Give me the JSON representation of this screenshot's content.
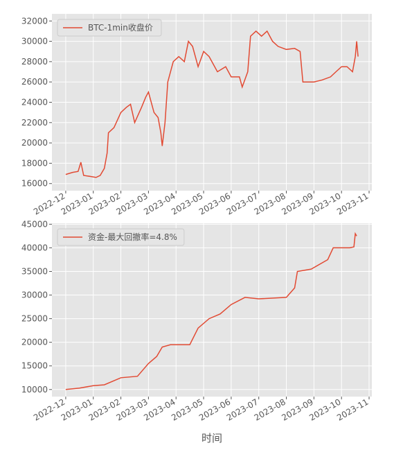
{
  "chart_data": [
    {
      "type": "line",
      "x": [
        0,
        0.25,
        0.45,
        0.55,
        0.65,
        0.9,
        1.1,
        1.25,
        1.4,
        1.5,
        1.55,
        1.75,
        2.0,
        2.2,
        2.35,
        2.5,
        2.75,
        2.9,
        3.0,
        3.2,
        3.35,
        3.45,
        3.5,
        3.6,
        3.7,
        3.9,
        4.1,
        4.3,
        4.45,
        4.6,
        4.8,
        5.0,
        5.2,
        5.5,
        5.8,
        6.0,
        6.3,
        6.4,
        6.6,
        6.7,
        6.9,
        7.1,
        7.3,
        7.5,
        7.7,
        8.0,
        8.3,
        8.5,
        8.6,
        8.8,
        9.0,
        9.3,
        9.6,
        9.8,
        10.0,
        10.2,
        10.4,
        10.5,
        10.55,
        10.6
      ],
      "series": [
        {
          "name": "BTC-1min收盘价",
          "color": "#e24a33",
          "values": [
            16900,
            17100,
            17200,
            18100,
            16800,
            16700,
            16600,
            16800,
            17500,
            19000,
            21000,
            21500,
            23000,
            23500,
            23800,
            22000,
            23500,
            24500,
            25000,
            23000,
            22500,
            21000,
            19700,
            22000,
            26000,
            28000,
            28500,
            28000,
            30000,
            29500,
            27500,
            29000,
            28500,
            27000,
            27500,
            26500,
            26500,
            25500,
            27000,
            30500,
            31000,
            30500,
            31000,
            30000,
            29500,
            29200,
            29300,
            29000,
            26000,
            26000,
            26000,
            26200,
            26500,
            27000,
            27500,
            27500,
            27000,
            28500,
            30000,
            28500
          ]
        }
      ],
      "xlim": [
        -0.5,
        11.1
      ],
      "xticks": [
        {
          "value": 0,
          "label": "2022-12"
        },
        {
          "value": 1,
          "label": "2023-01"
        },
        {
          "value": 2,
          "label": "2023-02"
        },
        {
          "value": 3,
          "label": "2023-03"
        },
        {
          "value": 4,
          "label": "2023-04"
        },
        {
          "value": 5,
          "label": "2023-05"
        },
        {
          "value": 6,
          "label": "2023-06"
        },
        {
          "value": 7,
          "label": "2023-07"
        },
        {
          "value": 8,
          "label": "2023-08"
        },
        {
          "value": 9,
          "label": "2023-09"
        },
        {
          "value": 10,
          "label": "2023-10"
        },
        {
          "value": 11,
          "label": "2023-11"
        }
      ],
      "ylim": [
        15300,
        32700
      ],
      "yticks": [
        16000,
        18000,
        20000,
        22000,
        24000,
        26000,
        28000,
        30000,
        32000
      ],
      "grid": true,
      "legend": "upper left"
    },
    {
      "type": "line",
      "x": [
        0,
        0.5,
        1.0,
        1.4,
        2.0,
        2.6,
        3.0,
        3.3,
        3.5,
        3.8,
        4.5,
        4.8,
        5.2,
        5.6,
        6.0,
        6.5,
        7.0,
        8.0,
        8.3,
        8.4,
        8.9,
        9.5,
        9.7,
        10.3,
        10.45,
        10.5,
        10.55
      ],
      "series": [
        {
          "name": "资金-最大回撤率=4.8%",
          "color": "#e24a33",
          "values": [
            10000,
            10300,
            10800,
            11000,
            12500,
            12800,
            15500,
            17000,
            19000,
            19500,
            19500,
            23000,
            25000,
            26000,
            28000,
            29500,
            29200,
            29500,
            31500,
            35000,
            35500,
            37500,
            40000,
            40000,
            40200,
            43000,
            42500
          ]
        }
      ],
      "xlim": [
        -0.5,
        11.1
      ],
      "xticks": [
        {
          "value": 0,
          "label": "2022-12"
        },
        {
          "value": 1,
          "label": "2023-01"
        },
        {
          "value": 2,
          "label": "2023-02"
        },
        {
          "value": 3,
          "label": "2023-03"
        },
        {
          "value": 4,
          "label": "2023-04"
        },
        {
          "value": 5,
          "label": "2023-05"
        },
        {
          "value": 6,
          "label": "2023-06"
        },
        {
          "value": 7,
          "label": "2023-07"
        },
        {
          "value": 8,
          "label": "2023-08"
        },
        {
          "value": 9,
          "label": "2023-09"
        },
        {
          "value": 10,
          "label": "2023-10"
        },
        {
          "value": 11,
          "label": "2023-11"
        }
      ],
      "ylim": [
        8500,
        45200
      ],
      "yticks": [
        10000,
        15000,
        20000,
        25000,
        30000,
        35000,
        40000,
        45000
      ],
      "xlabel": "时间",
      "grid": true,
      "legend": "upper left"
    }
  ]
}
